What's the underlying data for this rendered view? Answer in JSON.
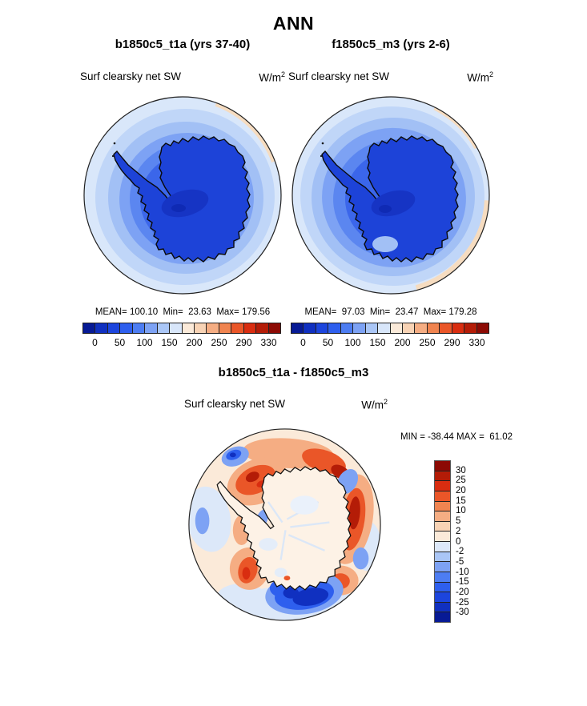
{
  "figure": {
    "title": "ANN",
    "background": "#ffffff"
  },
  "panels": [
    {
      "name": "b1850c5_t1a",
      "title": "b1850c5_t1a (yrs 37-40)",
      "var_label": "Surf clearsky net SW",
      "units_base": "W/m",
      "units_exp": "2",
      "stats_text": "MEAN= 100.10  Min=  23.63  Max= 179.56"
    },
    {
      "name": "f1850c5_m3",
      "title": "f1850c5_m3 (yrs 2-6)",
      "var_label": "Surf clearsky net SW",
      "units_base": "W/m",
      "units_exp": "2",
      "stats_text": "MEAN=  97.03  Min=  23.47  Max= 179.28"
    }
  ],
  "abs_colorbar": {
    "ticks": [
      "0",
      "50",
      "100",
      "150",
      "200",
      "250",
      "290",
      "330"
    ],
    "colors": [
      "#071a95",
      "#1030c0",
      "#1c45dd",
      "#2e5fee",
      "#4d7df2",
      "#7da2f4",
      "#aac6f6",
      "#d8e6fa",
      "#fbead9",
      "#f8d3b5",
      "#f5ad83",
      "#f08450",
      "#ea5628",
      "#d92d10",
      "#b41c07",
      "#8c0a04"
    ]
  },
  "diff_panel": {
    "title": "b1850c5_t1a - f1850c5_m3",
    "var_label": "Surf clearsky net SW",
    "units_base": "W/m",
    "units_exp": "2",
    "minmax_text": "MIN = -38.44 MAX =  61.02"
  },
  "diff_colorbar": {
    "ticks_top_to_bottom": [
      "30",
      "25",
      "20",
      "15",
      "10",
      "5",
      "2",
      "0",
      "-2",
      "-5",
      "-10",
      "-15",
      "-20",
      "-25",
      "-30"
    ],
    "colors_top_to_bottom": [
      "#8c0a04",
      "#b41c07",
      "#d92d10",
      "#ea5628",
      "#f08450",
      "#f5ad83",
      "#f8d3b5",
      "#fbead9",
      "#dce8f9",
      "#aac6f6",
      "#7da2f4",
      "#4d7df2",
      "#2e5fee",
      "#1c45dd",
      "#1030c0",
      "#071a95"
    ]
  },
  "chart_data": [
    {
      "type": "heatmap",
      "subtype": "south-polar-stereographic-contour-map",
      "season": "ANN",
      "title": "b1850c5_t1a (yrs 37-40)",
      "variable": "Surf clearsky net SW",
      "units": "W/m^2",
      "stats": {
        "mean": 100.1,
        "min": 23.63,
        "max": 179.56
      },
      "colorbar_tick_levels": [
        0,
        50,
        100,
        150,
        200,
        250,
        290,
        330
      ],
      "n_color_bins": 16,
      "palette": "blue-to-red diverging (low values blue over Antarctica, high values red near map edge)",
      "legend_position": "below"
    },
    {
      "type": "heatmap",
      "subtype": "south-polar-stereographic-contour-map",
      "season": "ANN",
      "title": "f1850c5_m3 (yrs 2-6)",
      "variable": "Surf clearsky net SW",
      "units": "W/m^2",
      "stats": {
        "mean": 97.03,
        "min": 23.47,
        "max": 179.28
      },
      "colorbar_tick_levels": [
        0,
        50,
        100,
        150,
        200,
        250,
        290,
        330
      ],
      "n_color_bins": 16,
      "palette": "blue-to-red diverging (low values blue over Antarctica, high values red near map edge)",
      "legend_position": "below"
    },
    {
      "type": "heatmap",
      "subtype": "south-polar-stereographic-contour-map difference",
      "title": "b1850c5_t1a - f1850c5_m3",
      "variable": "Surf clearsky net SW",
      "units": "W/m^2",
      "stats": {
        "min": -38.44,
        "max": 61.02
      },
      "colorbar_tick_levels": [
        30,
        25,
        20,
        15,
        10,
        5,
        2,
        0,
        -2,
        -5,
        -10,
        -15,
        -20,
        -25,
        -30
      ],
      "n_color_bins": 16,
      "palette": "red positive / blue negative diverging",
      "legend_position": "right"
    }
  ]
}
